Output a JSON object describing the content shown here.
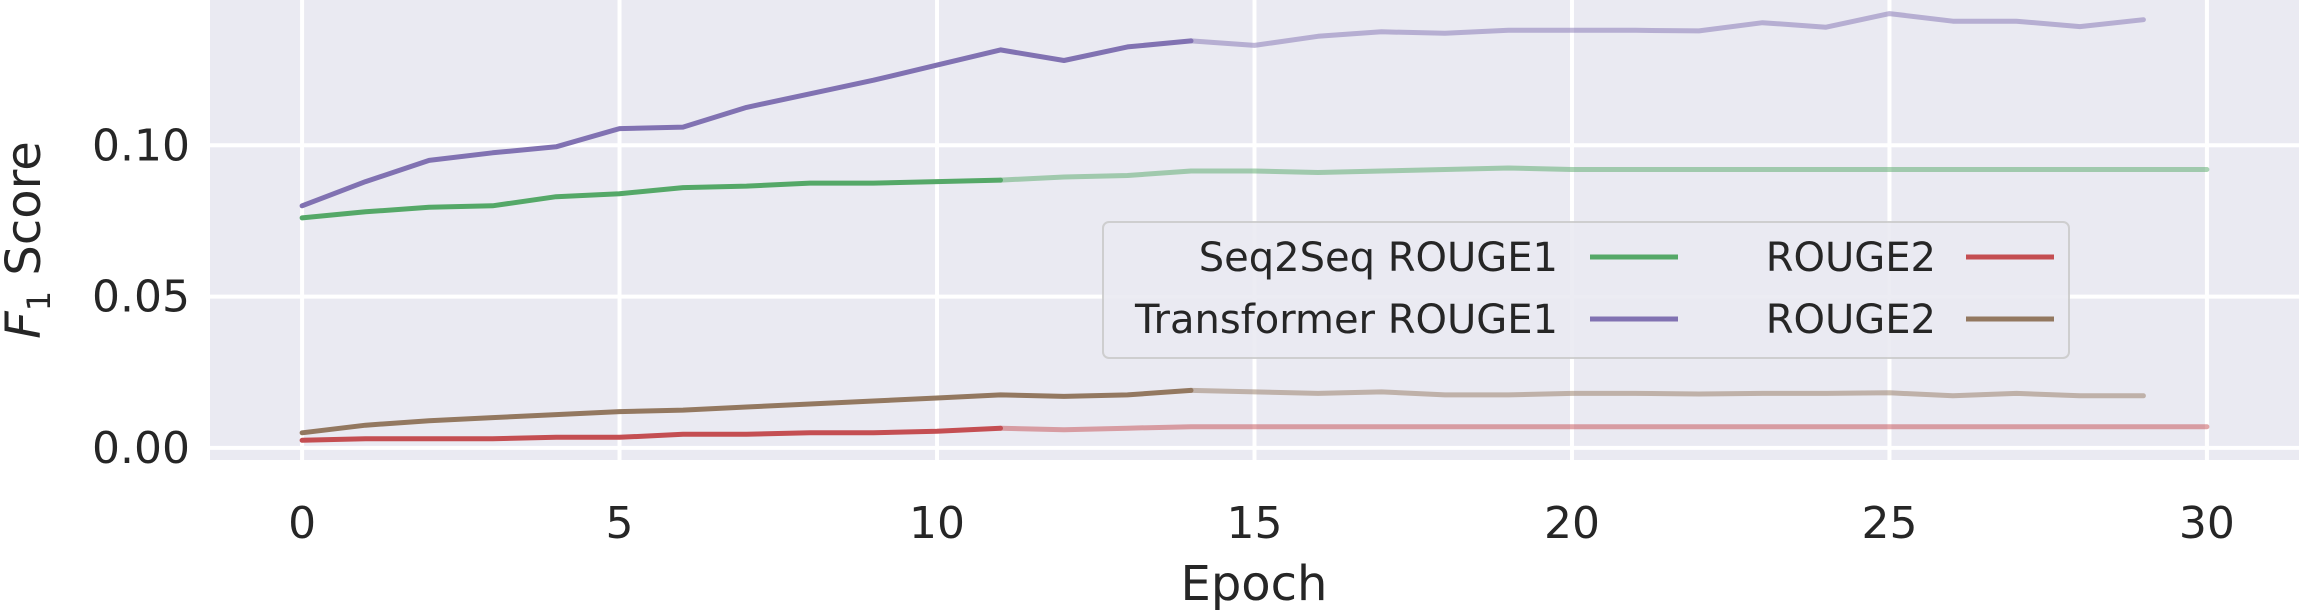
{
  "chart_data": {
    "type": "line",
    "xlabel": "Epoch",
    "ylabel_main": "F",
    "ylabel_sub": "1",
    "ylabel_rest": " Score",
    "xlim": [
      -1.45,
      31.45
    ],
    "ylim": [
      -0.004,
      0.148
    ],
    "xticks": [
      0,
      5,
      10,
      15,
      20,
      25,
      30
    ],
    "yticks": [
      0.0,
      0.05,
      0.1
    ],
    "ytick_labels": [
      "0.00",
      "0.05",
      "0.10"
    ],
    "grid": true,
    "legend_placement": "center-right",
    "background": "#eaeaf2",
    "series": [
      {
        "name": "Seq2Seq ROUGE1",
        "color": "#55a868",
        "best_epoch": 11,
        "x": [
          0,
          1,
          2,
          3,
          4,
          5,
          6,
          7,
          8,
          9,
          10,
          11,
          12,
          13,
          14,
          15,
          16,
          17,
          18,
          19,
          20,
          21,
          22,
          23,
          24,
          25,
          26,
          27,
          28,
          29,
          30
        ],
        "values": [
          0.076,
          0.078,
          0.0795,
          0.08,
          0.083,
          0.084,
          0.086,
          0.0865,
          0.0875,
          0.0875,
          0.088,
          0.0885,
          0.0895,
          0.09,
          0.0915,
          0.0915,
          0.091,
          0.0915,
          0.092,
          0.0925,
          0.092,
          0.092,
          0.092,
          0.092,
          0.092,
          0.092,
          0.092,
          0.092,
          0.092,
          0.092,
          0.092
        ]
      },
      {
        "name": "Transformer ROUGE1",
        "color": "#8172b2",
        "best_epoch": 14,
        "x": [
          0,
          1,
          2,
          3,
          4,
          5,
          6,
          7,
          8,
          9,
          10,
          11,
          12,
          13,
          14,
          15,
          16,
          17,
          18,
          19,
          20,
          21,
          22,
          23,
          24,
          25,
          26,
          27,
          28,
          29
        ],
        "values": [
          0.08,
          0.088,
          0.095,
          0.0975,
          0.0995,
          0.1055,
          0.106,
          0.1125,
          0.117,
          0.1215,
          0.1265,
          0.1315,
          0.128,
          0.1325,
          0.1345,
          0.133,
          0.136,
          0.1375,
          0.137,
          0.138,
          0.138,
          0.138,
          0.1378,
          0.1405,
          0.139,
          0.1435,
          0.141,
          0.141,
          0.1392,
          0.1415
        ]
      },
      {
        "name": "ROUGE2",
        "color": "#c44e52",
        "best_epoch": 11,
        "x": [
          0,
          1,
          2,
          3,
          4,
          5,
          6,
          7,
          8,
          9,
          10,
          11,
          12,
          13,
          14,
          15,
          16,
          17,
          18,
          19,
          20,
          21,
          22,
          23,
          24,
          25,
          26,
          27,
          28,
          29,
          30
        ],
        "values": [
          0.0025,
          0.003,
          0.003,
          0.003,
          0.0035,
          0.0035,
          0.0045,
          0.0045,
          0.005,
          0.005,
          0.0055,
          0.0065,
          0.006,
          0.0065,
          0.007,
          0.007,
          0.007,
          0.007,
          0.007,
          0.007,
          0.007,
          0.007,
          0.007,
          0.007,
          0.007,
          0.007,
          0.007,
          0.007,
          0.007,
          0.007,
          0.007
        ]
      },
      {
        "name": "ROUGE2",
        "color": "#937860",
        "best_epoch": 14,
        "x": [
          0,
          1,
          2,
          3,
          4,
          5,
          6,
          7,
          8,
          9,
          10,
          11,
          12,
          13,
          14,
          15,
          16,
          17,
          18,
          19,
          20,
          21,
          22,
          23,
          24,
          25,
          26,
          27,
          28,
          29
        ],
        "values": [
          0.005,
          0.0075,
          0.009,
          0.01,
          0.011,
          0.012,
          0.0125,
          0.0135,
          0.0145,
          0.0155,
          0.0165,
          0.0175,
          0.017,
          0.0175,
          0.019,
          0.0185,
          0.018,
          0.0185,
          0.0175,
          0.0175,
          0.018,
          0.018,
          0.0178,
          0.018,
          0.018,
          0.0182,
          0.0172,
          0.018,
          0.0172,
          0.0172
        ]
      }
    ],
    "legend": {
      "col1": [
        {
          "label": "Seq2Seq ROUGE1",
          "color": "#55a868"
        },
        {
          "label": "Transformer ROUGE1",
          "color": "#8172b2"
        }
      ],
      "col2": [
        {
          "label": "ROUGE2",
          "color": "#c44e52"
        },
        {
          "label": "ROUGE2",
          "color": "#937860"
        }
      ]
    }
  }
}
